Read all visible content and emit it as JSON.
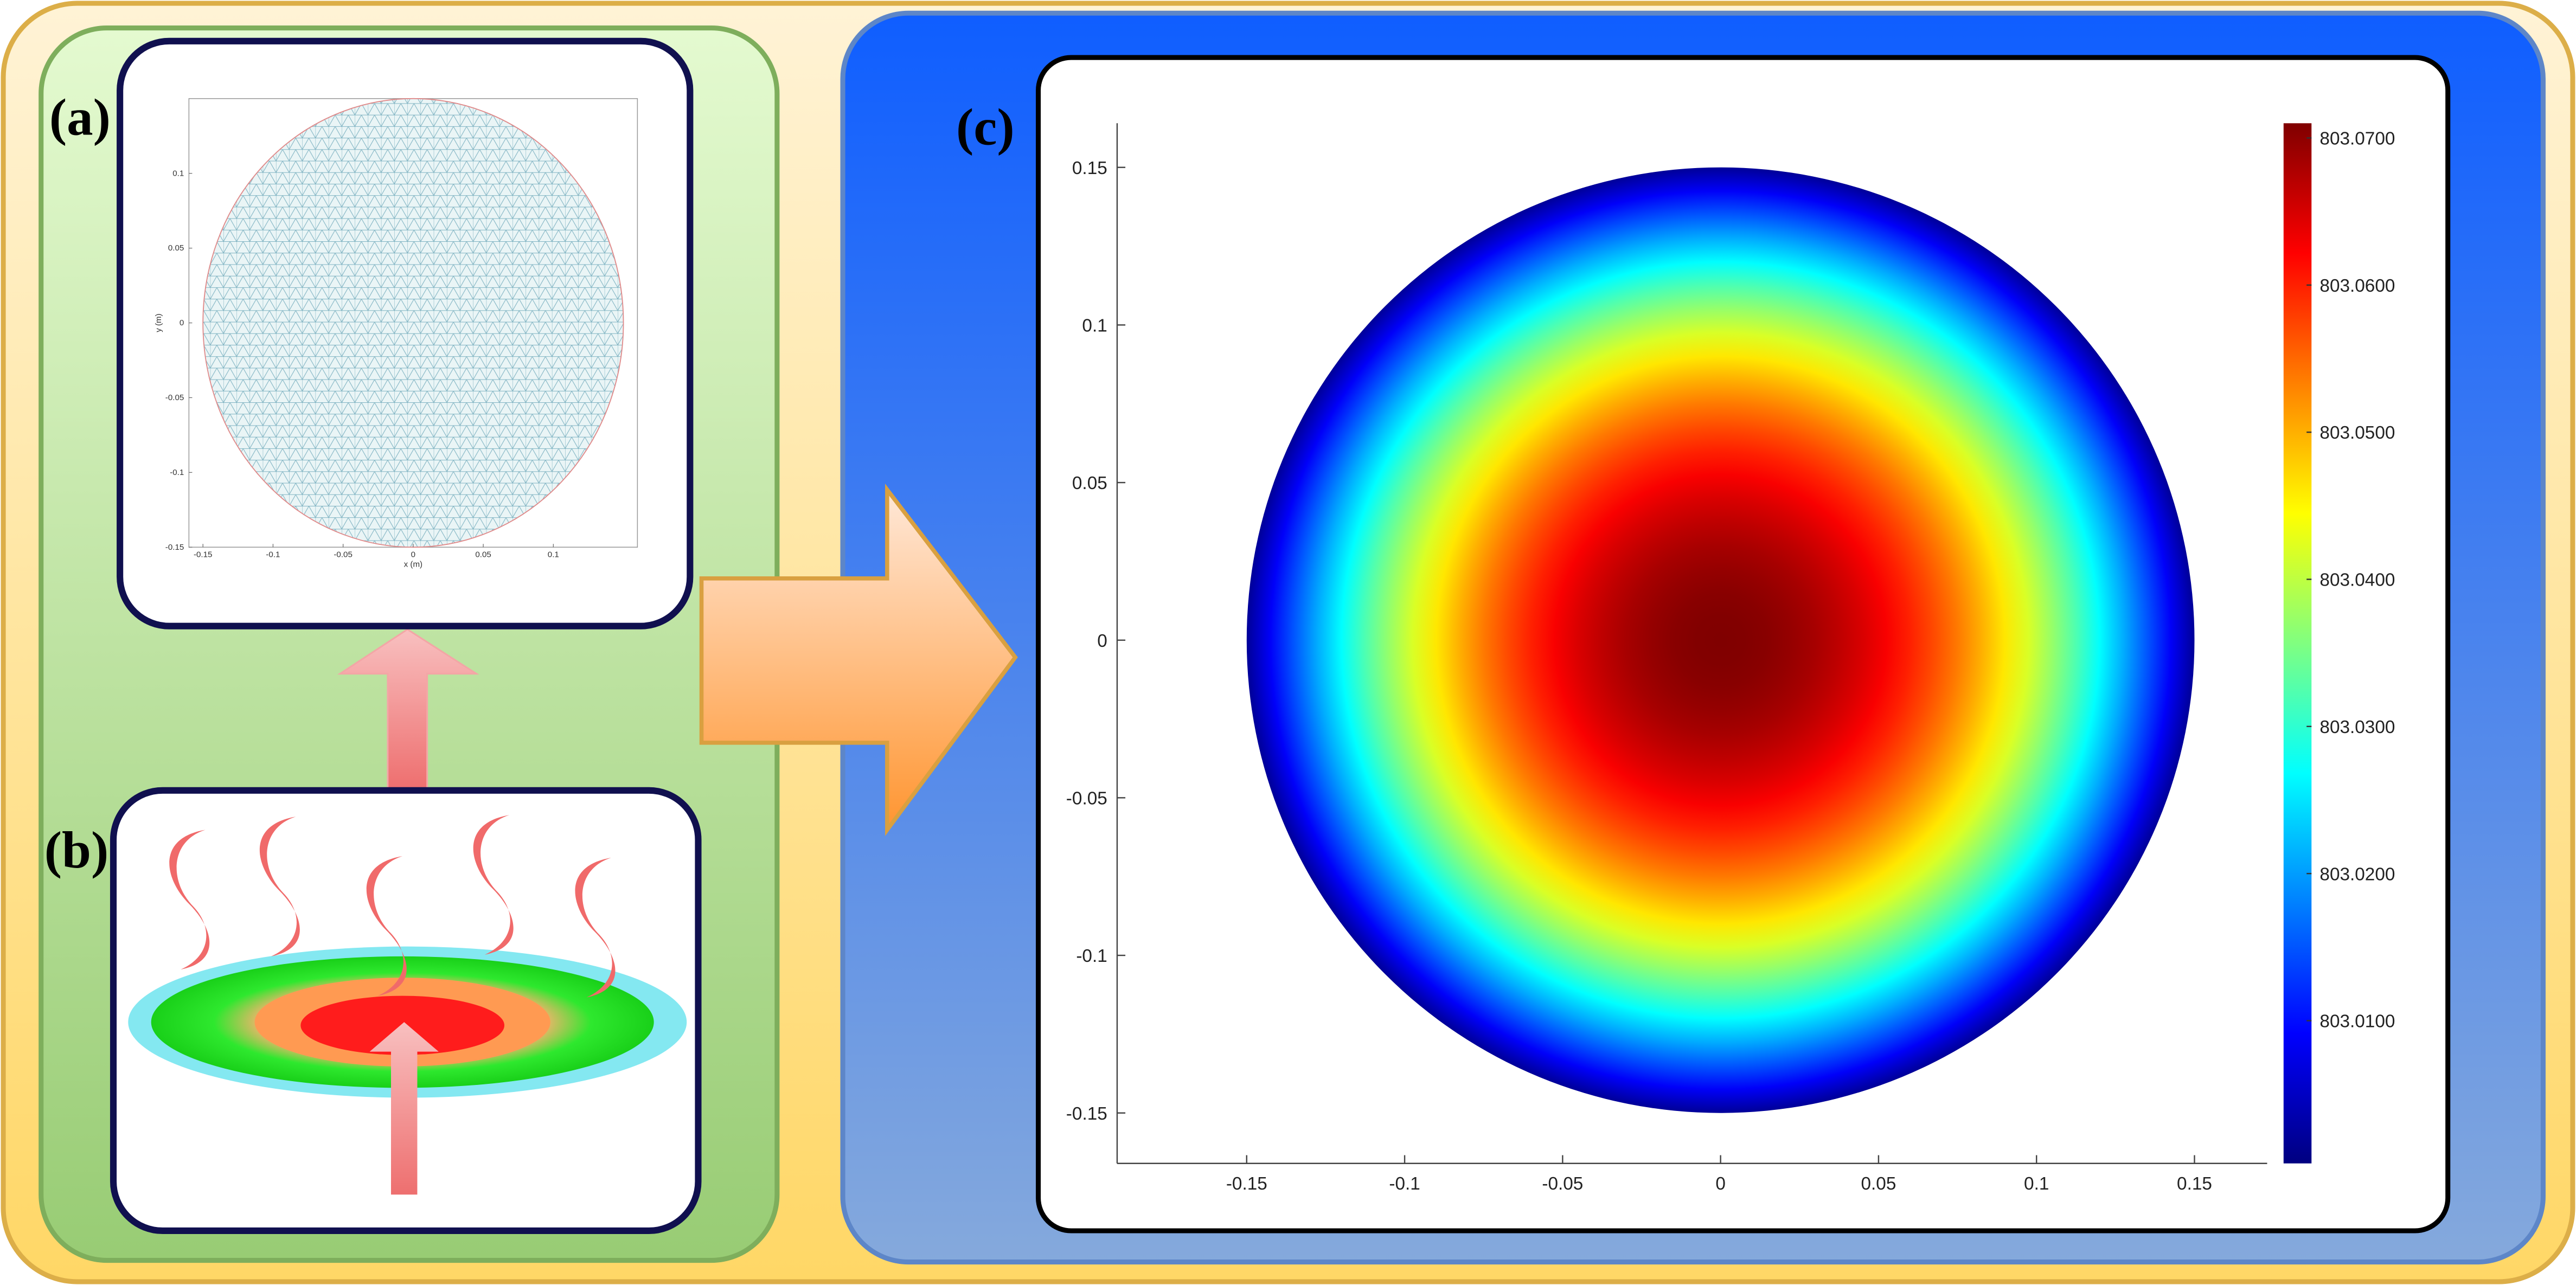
{
  "labels": [
    "(a)",
    "(b)",
    "(c)"
  ],
  "mesh_plot": {
    "type": "mesh",
    "xlabel": "x (m)",
    "ylabel": "y (m)",
    "radius": 0.15,
    "xlim": [
      -0.16,
      0.16
    ],
    "ylim": [
      -0.15,
      0.15
    ],
    "xticks": [
      -0.15,
      -0.1,
      -0.05,
      0,
      0.05,
      0.1
    ],
    "yticks": [
      -0.15,
      -0.1,
      -0.05,
      0,
      0.05,
      0.1
    ]
  },
  "heatmap": {
    "type": "radial-field",
    "radius": 0.15,
    "center_value": 803.071,
    "edge_value": 803.002,
    "xlim": [
      -0.191,
      0.173
    ],
    "ylim": [
      -0.166,
      0.164
    ],
    "xticks": [
      -0.15,
      -0.1,
      -0.05,
      0,
      0.05,
      0.1,
      0.15
    ],
    "yticks": [
      -0.15,
      -0.1,
      -0.05,
      0,
      0.05,
      0.1,
      0.15
    ],
    "clim": [
      803.0003,
      803.071
    ],
    "cticks": [
      {
        "value": 803.01,
        "label": "803.0100"
      },
      {
        "value": 803.02,
        "label": "803.0200"
      },
      {
        "value": 803.03,
        "label": "803.0300"
      },
      {
        "value": 803.04,
        "label": "803.0400"
      },
      {
        "value": 803.05,
        "label": "803.0500"
      },
      {
        "value": 803.06,
        "label": "803.0600"
      },
      {
        "value": 803.07,
        "label": "803.0700"
      }
    ]
  }
}
